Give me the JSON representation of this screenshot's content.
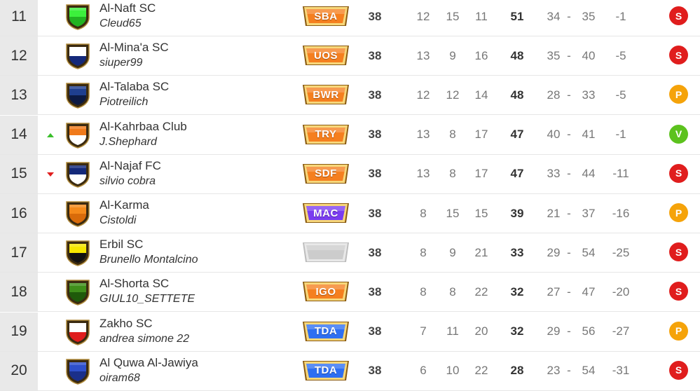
{
  "colors": {
    "status_S": "#e01d1d",
    "status_P": "#f5a30a",
    "status_V": "#5cc21e",
    "badge_orange": "#f57f1f",
    "badge_purple": "#7a3cf0",
    "badge_blue": "#2e6ff2",
    "badge_gray": "#cccccc"
  },
  "rows": [
    {
      "rank": "11",
      "trend": "none",
      "team": "Al-Naft SC",
      "manager": "Cleud65",
      "crest_icon": "shield-green-icon",
      "crest_top": "#3cf03c",
      "crest_bottom": "#22b322",
      "badge": "SBA",
      "badge_color": "orange",
      "played": "38",
      "won": "12",
      "drawn": "15",
      "lost": "11",
      "points": "51",
      "gf": "34",
      "dash": "-",
      "ga": "35",
      "gd": "-1",
      "status": "S"
    },
    {
      "rank": "12",
      "trend": "none",
      "team": "Al-Mina'a SC",
      "manager": "siuper99",
      "crest_icon": "shield-blue-white-icon",
      "crest_top": "#ffffff",
      "crest_bottom": "#14297a",
      "badge": "UOS",
      "badge_color": "orange",
      "played": "38",
      "won": "13",
      "drawn": "9",
      "lost": "16",
      "points": "48",
      "gf": "35",
      "dash": "-",
      "ga": "40",
      "gd": "-5",
      "status": "S"
    },
    {
      "rank": "13",
      "trend": "none",
      "team": "Al-Talaba SC",
      "manager": "Piotreilich",
      "crest_icon": "shield-navy-icon",
      "crest_top": "#1f3f8f",
      "crest_bottom": "#0c1a44",
      "badge": "BWR",
      "badge_color": "orange",
      "played": "38",
      "won": "12",
      "drawn": "12",
      "lost": "14",
      "points": "48",
      "gf": "28",
      "dash": "-",
      "ga": "33",
      "gd": "-5",
      "status": "P"
    },
    {
      "rank": "14",
      "trend": "up",
      "team": "Al-Kahrbaa Club",
      "manager": "J.Shephard",
      "crest_icon": "shield-orange-white-icon",
      "crest_top": "#f07a1a",
      "crest_bottom": "#ffffff",
      "badge": "TRY",
      "badge_color": "orange",
      "played": "38",
      "won": "13",
      "drawn": "8",
      "lost": "17",
      "points": "47",
      "gf": "40",
      "dash": "-",
      "ga": "41",
      "gd": "-1",
      "status": "V"
    },
    {
      "rank": "15",
      "trend": "down",
      "team": "Al-Najaf FC",
      "manager": "silvio cobra",
      "crest_icon": "shield-navy-white-icon",
      "crest_top": "#14297a",
      "crest_bottom": "#ffffff",
      "badge": "SDF",
      "badge_color": "orange",
      "played": "38",
      "won": "13",
      "drawn": "8",
      "lost": "17",
      "points": "47",
      "gf": "33",
      "dash": "-",
      "ga": "44",
      "gd": "-11",
      "status": "S"
    },
    {
      "rank": "16",
      "trend": "none",
      "team": "Al-Karma",
      "manager": "Cistoldi",
      "crest_icon": "shield-orange-icon",
      "crest_top": "#f58a1a",
      "crest_bottom": "#d96b0a",
      "badge": "MAC",
      "badge_color": "purple",
      "played": "38",
      "won": "8",
      "drawn": "15",
      "lost": "15",
      "points": "39",
      "gf": "21",
      "dash": "-",
      "ga": "37",
      "gd": "-16",
      "status": "P"
    },
    {
      "rank": "17",
      "trend": "none",
      "team": "Erbil SC",
      "manager": "Brunello Montalcino",
      "crest_icon": "shield-yellow-black-icon",
      "crest_top": "#f5e600",
      "crest_bottom": "#111111",
      "badge": "",
      "badge_color": "gray",
      "played": "38",
      "won": "8",
      "drawn": "9",
      "lost": "21",
      "points": "33",
      "gf": "29",
      "dash": "-",
      "ga": "54",
      "gd": "-25",
      "status": "S"
    },
    {
      "rank": "18",
      "trend": "none",
      "team": "Al-Shorta SC",
      "manager": "GIUL10_SETTETE",
      "crest_icon": "shield-dark-green-icon",
      "crest_top": "#3f8f1a",
      "crest_bottom": "#1f5a0a",
      "badge": "IGO",
      "badge_color": "orange",
      "played": "38",
      "won": "8",
      "drawn": "8",
      "lost": "22",
      "points": "32",
      "gf": "27",
      "dash": "-",
      "ga": "47",
      "gd": "-20",
      "status": "S"
    },
    {
      "rank": "19",
      "trend": "none",
      "team": "Zakho SC",
      "manager": "andrea simone 22",
      "crest_icon": "shield-white-red-icon",
      "crest_top": "#ffffff",
      "crest_bottom": "#e01d1d",
      "badge": "TDA",
      "badge_color": "blue",
      "played": "38",
      "won": "7",
      "drawn": "11",
      "lost": "20",
      "points": "32",
      "gf": "29",
      "dash": "-",
      "ga": "56",
      "gd": "-27",
      "status": "P"
    },
    {
      "rank": "20",
      "trend": "none",
      "team": "Al Quwa Al-Jawiya",
      "manager": "oiram68",
      "crest_icon": "shield-blue-icon",
      "crest_top": "#2e4fcc",
      "crest_bottom": "#1a2f8a",
      "badge": "TDA",
      "badge_color": "blue",
      "played": "38",
      "won": "6",
      "drawn": "10",
      "lost": "22",
      "points": "28",
      "gf": "23",
      "dash": "-",
      "ga": "54",
      "gd": "-31",
      "status": "S"
    }
  ]
}
